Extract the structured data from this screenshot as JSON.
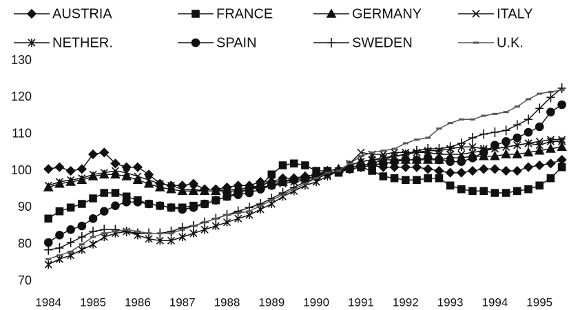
{
  "chart_data": {
    "type": "line",
    "x": [
      1984,
      1984.25,
      1984.5,
      1984.75,
      1985,
      1985.25,
      1985.5,
      1985.75,
      1986,
      1986.25,
      1986.5,
      1986.75,
      1987,
      1987.25,
      1987.5,
      1987.75,
      1988,
      1988.25,
      1988.5,
      1988.75,
      1989,
      1989.25,
      1989.5,
      1989.75,
      1990,
      1990.25,
      1990.5,
      1990.75,
      1991,
      1991.25,
      1991.5,
      1991.75,
      1992,
      1992.25,
      1992.5,
      1992.75,
      1993,
      1993.25,
      1993.5,
      1993.75,
      1994,
      1994.25,
      1994.5,
      1994.75,
      1995,
      1995.25,
      1995.5
    ],
    "xlim": [
      1983.95,
      1995.66
    ],
    "xticks": [
      1984,
      1985,
      1986,
      1987,
      1988,
      1989,
      1990,
      1991,
      1992,
      1993,
      1994,
      1995
    ],
    "ylim": [
      70,
      130
    ],
    "yticks": [
      70,
      80,
      90,
      100,
      110,
      120,
      130
    ],
    "series": [
      {
        "name": "AUSTRIA",
        "color": "#111",
        "marker": "diamond",
        "values": [
          100.5,
          101,
          100,
          100.5,
          104.5,
          105,
          102,
          101,
          101,
          99,
          96.5,
          96,
          96,
          96.5,
          95,
          95,
          95.5,
          96,
          96,
          97,
          97,
          98,
          98,
          98.5,
          99,
          99.5,
          100,
          100.5,
          101,
          101.5,
          101,
          101,
          101,
          101,
          100.5,
          100,
          99.5,
          99.5,
          100,
          100.5,
          100.5,
          100,
          100,
          101,
          101.5,
          102,
          103
        ]
      },
      {
        "name": "FRANCE",
        "color": "#111",
        "marker": "square",
        "values": [
          87,
          89,
          90,
          91,
          92.5,
          94,
          94,
          93,
          92,
          91,
          90.5,
          90,
          90,
          90.5,
          91,
          92,
          93,
          94,
          95,
          96,
          99,
          101.5,
          102,
          101.5,
          100,
          100,
          99.5,
          100.5,
          101,
          100,
          98.5,
          98,
          97.5,
          97.5,
          98,
          98,
          96,
          95,
          94.5,
          94.5,
          94,
          94,
          94.5,
          95,
          96,
          98,
          101
        ]
      },
      {
        "name": "GERMANY",
        "color": "#111",
        "marker": "triangle",
        "values": [
          95.5,
          96.5,
          97,
          97.5,
          98.5,
          99,
          99,
          98.5,
          97.5,
          96.5,
          95.5,
          95,
          94.5,
          94.5,
          94.5,
          94.5,
          95,
          95,
          95.5,
          96,
          97,
          97,
          98,
          98.5,
          99,
          100,
          100.5,
          101.5,
          102.5,
          103,
          103,
          103,
          103,
          103,
          103,
          103,
          103.5,
          103.5,
          104,
          104,
          104,
          104.5,
          104.5,
          105,
          105.5,
          106,
          106.5
        ]
      },
      {
        "name": "ITALY",
        "color": "#111",
        "marker": "cross",
        "values": [
          96,
          97,
          97.5,
          98,
          99,
          99.5,
          100,
          99.5,
          98.5,
          97.5,
          96.5,
          96,
          95,
          95,
          94.5,
          94.5,
          94.5,
          94.5,
          95,
          95.5,
          96,
          96.5,
          97,
          97.5,
          98.5,
          99,
          100,
          102,
          105,
          104.5,
          104.5,
          105,
          105,
          105,
          105,
          104.5,
          104.5,
          104.5,
          105,
          105.5,
          106,
          106.5,
          107,
          107.5,
          108,
          108.5,
          108.5
        ]
      },
      {
        "name": "NETHER.",
        "color": "#111",
        "marker": "asterisk",
        "values": [
          74.5,
          76,
          77,
          78.5,
          80,
          82,
          83,
          83.5,
          82.5,
          81.5,
          81,
          81,
          82,
          83,
          84,
          85,
          86,
          87,
          88,
          89.5,
          91,
          93,
          94.5,
          96,
          97,
          98.5,
          100,
          101.5,
          102.5,
          103,
          103.5,
          104,
          104.5,
          105,
          105.5,
          105.5,
          106,
          106.5,
          106.5,
          106,
          106,
          106.5,
          107,
          107.5,
          107,
          108,
          108
        ]
      },
      {
        "name": "SPAIN",
        "color": "#111",
        "marker": "circle",
        "values": [
          80.5,
          82.5,
          84,
          85,
          87,
          89,
          90.5,
          91.5,
          91.5,
          91,
          90.5,
          90,
          89.5,
          90,
          91,
          92,
          93,
          93.5,
          94,
          95,
          96,
          97,
          97.5,
          98,
          98.5,
          99.5,
          100,
          100.5,
          101,
          101.5,
          102,
          102.5,
          103,
          103,
          103.5,
          103,
          102.5,
          102.5,
          103.5,
          105,
          107,
          108,
          109,
          110.5,
          112,
          116,
          118
        ]
      },
      {
        "name": "SWEDEN",
        "color": "#111",
        "marker": "plus",
        "values": [
          78.5,
          79,
          80.5,
          82,
          83.5,
          84,
          84,
          83.5,
          83,
          83,
          83,
          83.5,
          84.5,
          85,
          86,
          87,
          88,
          89,
          90,
          91,
          92.5,
          94,
          95.5,
          97,
          98,
          99,
          100,
          101,
          101.5,
          102,
          103,
          104,
          104.5,
          105.5,
          106,
          106,
          106.5,
          107.5,
          109,
          110,
          110.5,
          111,
          112.5,
          114,
          117,
          120,
          122.5
        ]
      },
      {
        "name": "U.K.",
        "color": "#555",
        "marker": "dash",
        "values": [
          76,
          77,
          78,
          80,
          82,
          83,
          83.5,
          84,
          83.5,
          83,
          83,
          83,
          84,
          85,
          86,
          87,
          88,
          88.5,
          89,
          90.5,
          92,
          93.5,
          95,
          96.5,
          98,
          99.5,
          100,
          102,
          104,
          105,
          105.5,
          106,
          107.5,
          108.5,
          109,
          111.5,
          113,
          114,
          114,
          115,
          115.5,
          116,
          117.5,
          119.5,
          121,
          121.5,
          122
        ]
      }
    ]
  }
}
